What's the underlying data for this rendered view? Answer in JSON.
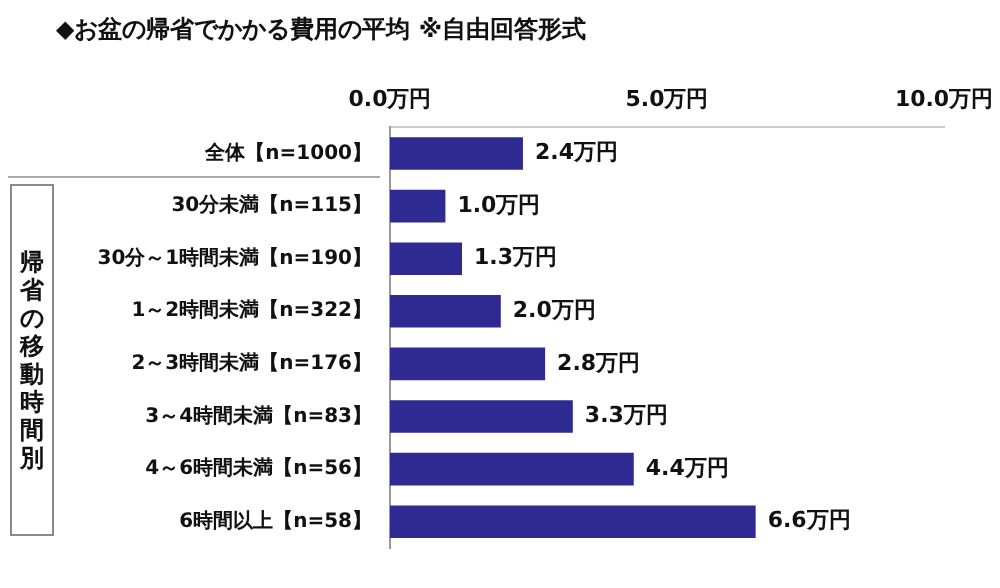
{
  "chart_data": {
    "type": "bar",
    "orientation": "horizontal",
    "title": "◆お盆の帰省でかかる費用の平均 ※自由回答形式",
    "categories": [
      "全体【n=1000】",
      "30分未満【n=115】",
      "30分～1時間未満【n=190】",
      "1～2時間未満【n=322】",
      "2～3時間未満【n=176】",
      "3～4時間未満【n=83】",
      "4～6時間未満【n=56】",
      "6時間以上【n=58】"
    ],
    "values": [
      2.4,
      1.0,
      1.3,
      2.0,
      2.8,
      3.3,
      4.4,
      6.6
    ],
    "value_labels": [
      "2.4万円",
      "1.0万円",
      "1.3万円",
      "2.0万円",
      "2.8万円",
      "3.3万円",
      "4.4万円",
      "6.6万円"
    ],
    "color": "#2e2a92",
    "xlim": [
      0,
      10
    ],
    "xticks": [
      {
        "value": 0,
        "label": "0.0万円"
      },
      {
        "value": 5,
        "label": "5.0万円"
      },
      {
        "value": 10,
        "label": "10.0万円"
      }
    ],
    "annotations": [
      "帰省の移動時間別"
    ],
    "grid": false,
    "legend": false
  }
}
